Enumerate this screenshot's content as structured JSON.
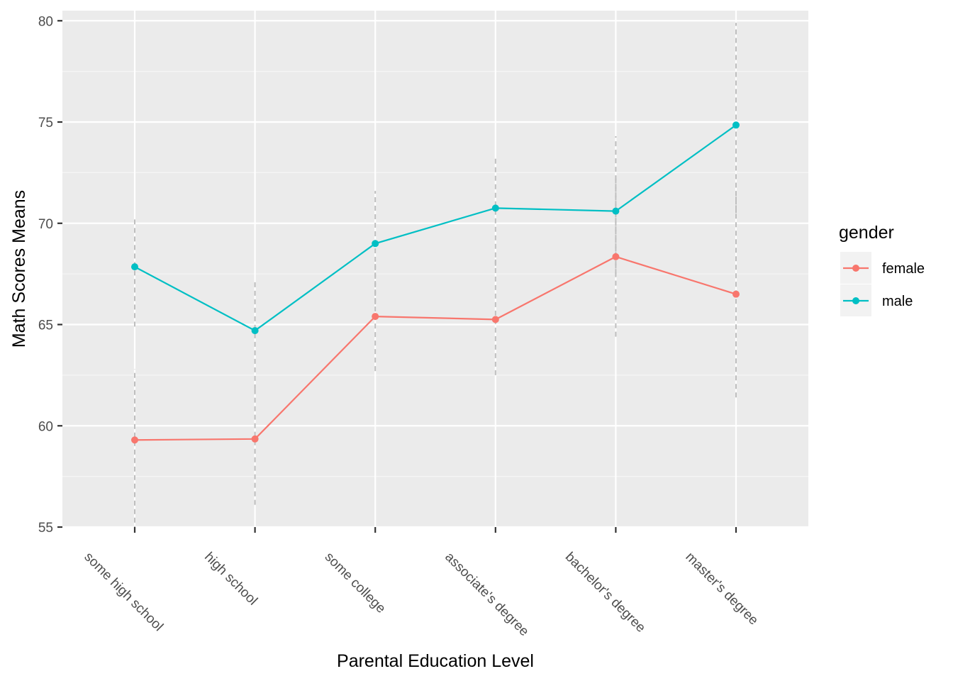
{
  "chart_data": {
    "type": "line",
    "xlabel": "Parental Education Level",
    "ylabel": "Math Scores Means",
    "categories": [
      "some high school",
      "high school",
      "some college",
      "associate's degree",
      "bachelor's degree",
      "master's degree"
    ],
    "ylim": [
      55,
      80.5
    ],
    "yticks": [
      55,
      60,
      65,
      70,
      75,
      80
    ],
    "grid": true,
    "legend": {
      "title": "gender",
      "position": "right"
    },
    "series": [
      {
        "name": "female",
        "color": "#F8766D",
        "values": [
          59.3,
          59.35,
          65.4,
          65.25,
          68.35,
          66.5
        ],
        "error_low": [
          54.8,
          56.1,
          62.7,
          62.5,
          64.4,
          61.4
        ],
        "error_high": [
          62.8,
          61.8,
          68.2,
          68.3,
          72.3,
          71.6
        ]
      },
      {
        "name": "male",
        "color": "#00BFC4",
        "values": [
          67.85,
          64.7,
          69.0,
          70.75,
          70.6,
          74.85
        ],
        "error_low": [
          64.9,
          61.8,
          66.0,
          67.9,
          67.5,
          70.5
        ],
        "error_high": [
          70.3,
          67.2,
          71.6,
          73.2,
          74.3,
          79.9
        ]
      }
    ]
  }
}
